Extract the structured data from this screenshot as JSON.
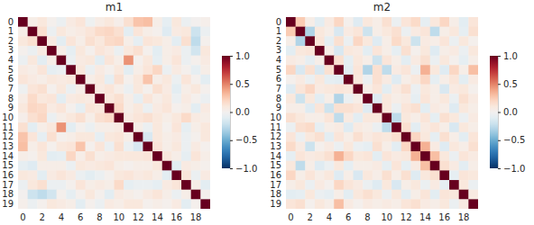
{
  "chart_data": [
    {
      "type": "heatmap",
      "title": "m1",
      "categories": [
        "0",
        null,
        "2",
        null,
        "4",
        null,
        "6",
        null,
        "8",
        null,
        "10",
        null,
        "12",
        null,
        "14",
        null,
        "16",
        null,
        "18",
        null
      ],
      "y_categories": [
        "0",
        "1",
        "2",
        "3",
        "4",
        "5",
        "6",
        "7",
        "8",
        "9",
        "10",
        "11",
        "12",
        "13",
        "14",
        "15",
        "16",
        "17",
        "18",
        "19"
      ],
      "cells": [
        [
          1,
          0.05,
          0.1,
          0.02,
          -0.05,
          0.08,
          0.12,
          -0.03,
          0.06,
          0.1,
          0.04,
          0.15,
          0.28,
          0.3,
          0.05,
          -0.08,
          0.1,
          -0.05,
          0,
          0.03
        ],
        [
          0.05,
          1,
          0.15,
          -0.05,
          0.1,
          0.05,
          0.08,
          0.12,
          0.18,
          0.2,
          0.15,
          -0.1,
          0.12,
          0.05,
          0.02,
          -0.12,
          0.08,
          0.1,
          -0.2,
          -0.05
        ],
        [
          0.1,
          0.15,
          1,
          0.08,
          -0.1,
          0.12,
          0.05,
          0.15,
          0.1,
          0.18,
          0.2,
          0.05,
          -0.08,
          0.12,
          0.1,
          0.05,
          -0.1,
          0.15,
          -0.25,
          0.02
        ],
        [
          0.02,
          -0.05,
          0.08,
          1,
          0.05,
          -0.08,
          0.1,
          0.02,
          0.12,
          0.08,
          -0.05,
          0.1,
          0.15,
          0.02,
          -0.1,
          0.05,
          0.08,
          -0.05,
          -0.18,
          0.1
        ],
        [
          -0.05,
          0.1,
          -0.1,
          0.05,
          1,
          -0.05,
          0.08,
          0.1,
          -0.1,
          0.12,
          0.05,
          0.45,
          0.02,
          0.1,
          -0.08,
          0.05,
          0.12,
          -0.05,
          0.02,
          0.08
        ],
        [
          0.08,
          0.05,
          0.12,
          -0.08,
          -0.05,
          1,
          0.1,
          -0.05,
          0.08,
          0.02,
          0.1,
          -0.1,
          0.05,
          0.12,
          0.2,
          -0.05,
          0.08,
          0.02,
          -0.08,
          0.05
        ],
        [
          0.12,
          0.08,
          0.05,
          0.1,
          0.08,
          0.1,
          1,
          0.05,
          0.1,
          -0.08,
          0.15,
          0.02,
          0.1,
          0.28,
          0.05,
          0.1,
          -0.05,
          0.12,
          0.02,
          -0.1
        ],
        [
          -0.03,
          0.12,
          0.15,
          0.02,
          0.1,
          -0.05,
          0.05,
          1,
          0.08,
          0.12,
          0.05,
          -0.05,
          0.1,
          0.02,
          0.15,
          0.08,
          -0.1,
          0.05,
          0.1,
          0.02
        ],
        [
          0.06,
          0.18,
          0.1,
          0.12,
          -0.1,
          0.08,
          0.1,
          0.08,
          1,
          0.1,
          0.15,
          0.05,
          -0.08,
          0.12,
          0.05,
          0.1,
          -0.05,
          0.08,
          0.02,
          -0.05
        ],
        [
          0.1,
          0.2,
          0.18,
          0.08,
          0.12,
          0.02,
          -0.08,
          0.12,
          0.1,
          1,
          0.18,
          0.05,
          0.1,
          -0.05,
          0.08,
          0.12,
          0.02,
          0.05,
          -0.1,
          0.08
        ],
        [
          0.04,
          0.15,
          0.2,
          -0.05,
          0.05,
          0.1,
          0.15,
          0.05,
          0.15,
          0.18,
          1,
          0.08,
          0.12,
          0.15,
          0.1,
          0.05,
          0.1,
          0.18,
          0.08,
          0.05
        ],
        [
          0.15,
          -0.1,
          0.05,
          0.1,
          0.45,
          -0.1,
          0.02,
          -0.05,
          0.05,
          0.05,
          0.08,
          1,
          0.05,
          -0.05,
          0.1,
          0.02,
          0.12,
          -0.08,
          0.05,
          0.1
        ],
        [
          0.28,
          0.12,
          -0.08,
          0.15,
          0.02,
          0.05,
          0.1,
          0.1,
          -0.08,
          0.1,
          0.12,
          0.05,
          1,
          -0.15,
          0.1,
          0.05,
          0.08,
          -0.05,
          0.02,
          0.1
        ],
        [
          0.3,
          0.05,
          0.12,
          0.02,
          0.1,
          0.12,
          0.28,
          0.02,
          0.12,
          -0.05,
          0.15,
          -0.05,
          -0.15,
          1,
          0.12,
          0.05,
          0.1,
          -0.05,
          0.08,
          0.02
        ],
        [
          0.05,
          0.02,
          0.1,
          -0.1,
          -0.08,
          0.2,
          0.05,
          0.15,
          0.05,
          0.08,
          0.1,
          0.1,
          0.1,
          0.12,
          1,
          0.1,
          0.05,
          -0.08,
          0.12,
          0.05
        ],
        [
          -0.08,
          -0.12,
          0.05,
          0.05,
          0.05,
          -0.05,
          0.1,
          0.08,
          0.1,
          0.12,
          0.05,
          0.02,
          0.05,
          0.05,
          0.1,
          1,
          -0.1,
          0.08,
          0.05,
          0.02
        ],
        [
          0.1,
          0.08,
          -0.1,
          0.08,
          0.12,
          0.08,
          -0.05,
          -0.1,
          -0.05,
          0.02,
          0.1,
          0.12,
          0.08,
          0.1,
          0.05,
          -0.1,
          1,
          0.12,
          -0.05,
          0.08
        ],
        [
          -0.05,
          0.1,
          0.15,
          -0.05,
          -0.05,
          0.02,
          0.12,
          0.05,
          0.08,
          0.05,
          0.18,
          -0.08,
          -0.05,
          -0.05,
          -0.08,
          0.08,
          0.12,
          1,
          0.05,
          -0.1
        ],
        [
          0,
          -0.2,
          -0.25,
          -0.18,
          0.02,
          -0.08,
          0.02,
          0.1,
          0.02,
          -0.1,
          0.08,
          0.05,
          0.02,
          0.08,
          0.12,
          0.05,
          -0.05,
          0.05,
          1,
          0.02
        ],
        [
          0.03,
          -0.05,
          0.02,
          0.1,
          0.08,
          0.05,
          -0.1,
          0.02,
          -0.05,
          0.08,
          0.05,
          0.1,
          0.1,
          0.02,
          0.05,
          0.02,
          0.08,
          -0.1,
          0.02,
          1
        ]
      ],
      "colorbar": {
        "range": [
          -1,
          1
        ],
        "ticks": [
          {
            "value": -1,
            "label": "−1.0"
          },
          {
            "value": -0.5,
            "label": "−0.5"
          },
          {
            "value": 0,
            "label": "0.0"
          },
          {
            "value": 0.5,
            "label": "0.5"
          },
          {
            "value": 1,
            "label": "1.0"
          }
        ]
      }
    },
    {
      "type": "heatmap",
      "title": "m2",
      "categories": [
        "0",
        null,
        "2",
        null,
        "4",
        null,
        "6",
        null,
        "8",
        null,
        "10",
        null,
        "12",
        null,
        "14",
        null,
        "16",
        null,
        "18",
        null
      ],
      "y_categories": [
        "0",
        "1",
        "2",
        "3",
        "4",
        "5",
        "6",
        "7",
        "8",
        "9",
        "10",
        "11",
        "12",
        "13",
        "14",
        "15",
        "16",
        "17",
        "18",
        "19"
      ],
      "cells": [
        [
          1,
          0.25,
          0.05,
          -0.1,
          0.08,
          0.2,
          0.02,
          -0.12,
          0.1,
          0.05,
          0.15,
          -0.05,
          0.12,
          0.18,
          -0.08,
          0.1,
          0.2,
          0.05,
          -0.1,
          0.12
        ],
        [
          0.25,
          1,
          -0.3,
          0.1,
          0.05,
          -0.15,
          0.08,
          0.12,
          -0.2,
          0.05,
          0.1,
          0.15,
          -0.05,
          0.08,
          0.12,
          -0.25,
          0.05,
          0.1,
          -0.08,
          0.15
        ],
        [
          0.05,
          -0.3,
          1,
          0.12,
          -0.08,
          0.15,
          -0.05,
          0.2,
          0.1,
          -0.12,
          0.05,
          0.18,
          0.1,
          -0.2,
          0.08,
          0.05,
          0.12,
          -0.05,
          0.1,
          0.02
        ],
        [
          -0.1,
          0.1,
          0.12,
          1,
          0.05,
          -0.15,
          0.1,
          0.08,
          -0.1,
          0.12,
          0.05,
          -0.08,
          0.15,
          0.02,
          0.1,
          -0.12,
          0.05,
          0.08,
          -0.05,
          0.1
        ],
        [
          0.08,
          0.05,
          -0.08,
          0.05,
          1,
          0.15,
          -0.08,
          0.1,
          0.05,
          -0.2,
          0.12,
          0.05,
          -0.1,
          0.08,
          0.15,
          -0.05,
          0.1,
          0.02,
          -0.08,
          0.05
        ],
        [
          0.2,
          -0.15,
          0.15,
          -0.15,
          0.15,
          1,
          -0.1,
          0.12,
          -0.3,
          0.15,
          -0.25,
          0.08,
          0.12,
          -0.05,
          0.35,
          0.1,
          -0.12,
          0.2,
          0.05,
          0.3
        ],
        [
          0.02,
          0.08,
          -0.05,
          0.1,
          -0.08,
          -0.1,
          1,
          0.1,
          -0.05,
          0.15,
          0.08,
          -0.12,
          0.05,
          0.1,
          0.2,
          -0.08,
          0.05,
          0.12,
          -0.1,
          0.08
        ],
        [
          -0.12,
          0.12,
          0.2,
          0.08,
          0.1,
          0.12,
          0.1,
          1,
          0.05,
          0.12,
          -0.1,
          0.08,
          0.15,
          -0.05,
          0.1,
          0.05,
          -0.15,
          0.08,
          0.1,
          0.02
        ],
        [
          0.1,
          -0.2,
          0.1,
          -0.1,
          0.05,
          -0.3,
          -0.05,
          0.05,
          1,
          -0.12,
          0.1,
          0.05,
          0.08,
          -0.08,
          0.12,
          0.05,
          0.1,
          -0.05,
          0.15,
          0.08
        ],
        [
          0.05,
          0.05,
          -0.12,
          0.12,
          -0.2,
          0.15,
          0.15,
          0.12,
          -0.12,
          1,
          0.1,
          -0.05,
          0.12,
          0.15,
          -0.1,
          0.08,
          0.05,
          -0.12,
          0.1,
          0.05
        ],
        [
          0.15,
          0.1,
          0.05,
          0.05,
          0.12,
          -0.25,
          0.08,
          -0.1,
          0.1,
          0.1,
          1,
          -0.25,
          0.1,
          0.05,
          0.12,
          -0.08,
          0.15,
          0.1,
          -0.05,
          0.08
        ],
        [
          -0.05,
          0.15,
          0.18,
          -0.08,
          0.05,
          0.08,
          -0.12,
          0.08,
          0.05,
          -0.05,
          -0.25,
          1,
          0.15,
          -0.1,
          0.08,
          0.12,
          0.05,
          -0.15,
          0.1,
          0.05
        ],
        [
          0.12,
          -0.05,
          0.1,
          0.15,
          -0.1,
          0.12,
          0.05,
          0.15,
          0.08,
          0.12,
          0.1,
          0.15,
          1,
          0.2,
          0.1,
          -0.08,
          0.15,
          0.05,
          -0.1,
          0.12
        ],
        [
          0.18,
          0.08,
          -0.2,
          0.02,
          0.08,
          -0.05,
          0.1,
          -0.05,
          -0.08,
          0.15,
          0.05,
          -0.1,
          0.2,
          1,
          0.35,
          0.08,
          -0.12,
          0.1,
          0.05,
          0.15
        ],
        [
          -0.08,
          0.12,
          0.08,
          0.1,
          0.15,
          0.35,
          0.2,
          0.1,
          0.12,
          -0.1,
          0.12,
          0.08,
          0.1,
          0.35,
          1,
          0.3,
          0.1,
          -0.05,
          0.12,
          0.08
        ],
        [
          0.1,
          -0.25,
          0.05,
          -0.12,
          -0.05,
          0.1,
          -0.08,
          0.05,
          0.05,
          0.08,
          -0.08,
          0.12,
          -0.08,
          0.08,
          0.3,
          1,
          0.15,
          0.08,
          -0.1,
          0.05
        ],
        [
          0.2,
          0.05,
          0.12,
          0.05,
          0.1,
          -0.12,
          0.05,
          -0.15,
          0.1,
          0.05,
          0.15,
          0.05,
          0.15,
          -0.12,
          0.1,
          0.15,
          1,
          -0.08,
          0.12,
          0.1
        ],
        [
          0.05,
          0.1,
          -0.05,
          0.08,
          0.02,
          0.2,
          0.12,
          0.08,
          -0.05,
          -0.12,
          0.1,
          -0.15,
          0.05,
          0.1,
          -0.05,
          0.08,
          -0.08,
          1,
          0.1,
          -0.05
        ],
        [
          -0.1,
          -0.08,
          0.1,
          -0.05,
          -0.08,
          0.05,
          -0.1,
          0.1,
          0.15,
          0.1,
          -0.05,
          0.1,
          -0.1,
          0.05,
          0.12,
          -0.1,
          0.12,
          0.1,
          1,
          0.08
        ],
        [
          0.12,
          0.15,
          0.02,
          0.1,
          0.05,
          0.3,
          0.08,
          0.02,
          0.08,
          0.05,
          0.08,
          0.05,
          0.12,
          0.15,
          0.08,
          0.05,
          0.1,
          -0.05,
          0.08,
          1
        ]
      ],
      "colorbar": {
        "range": [
          -1,
          1
        ],
        "ticks": [
          {
            "value": -1,
            "label": "−1.0"
          },
          {
            "value": -0.5,
            "label": "−0.5"
          },
          {
            "value": 0,
            "label": "0.0"
          },
          {
            "value": 0.5,
            "label": "0.5"
          },
          {
            "value": 1,
            "label": "1.0"
          }
        ]
      }
    }
  ]
}
